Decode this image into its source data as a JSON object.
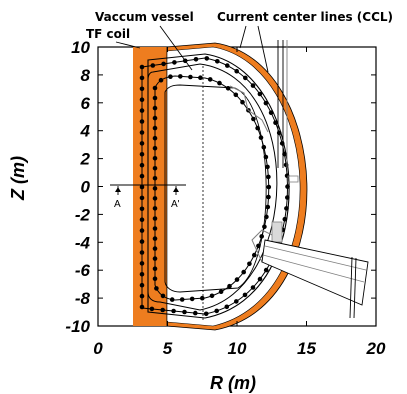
{
  "axes": {
    "xlabel": "R (m)",
    "ylabel": "Z (m)",
    "x_ticks": [
      "0",
      "5",
      "10",
      "15",
      "20"
    ],
    "y_ticks": [
      "10",
      "8",
      "6",
      "4",
      "2",
      "0",
      "-2",
      "-4",
      "-6",
      "-8",
      "-10"
    ],
    "xlim": [
      0,
      20
    ],
    "ylim": [
      -10,
      10
    ]
  },
  "labels": {
    "vessel": "Vaccum vessel",
    "ccl": "Current center lines (CCL)",
    "tf": "TF coil",
    "cut_a": "A",
    "cut_a_prime": "A'"
  },
  "colors": {
    "coil": "#ee7d1f",
    "lines": "#000000",
    "structure": "#7f7f7f"
  }
}
